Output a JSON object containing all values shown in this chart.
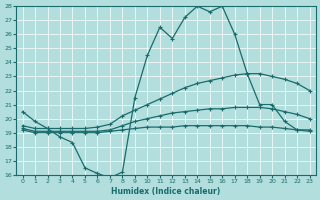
{
  "xlabel": "Humidex (Indice chaleur)",
  "background_color": "#b2dede",
  "line_color": "#1a6b6b",
  "grid_color": "#ffffff",
  "x_values": [
    0,
    1,
    2,
    3,
    4,
    5,
    6,
    7,
    8,
    9,
    10,
    11,
    12,
    13,
    14,
    15,
    16,
    17,
    18,
    19,
    20,
    21,
    22,
    23
  ],
  "line1": [
    20.5,
    19.8,
    19.3,
    18.7,
    18.3,
    16.5,
    16.1,
    15.8,
    16.2,
    21.5,
    24.5,
    26.5,
    25.7,
    27.2,
    28.0,
    27.6,
    28.0,
    26.0,
    23.2,
    21.0,
    21.0,
    19.8,
    19.2,
    19.2
  ],
  "line2": [
    19.5,
    19.3,
    19.3,
    19.3,
    19.3,
    19.3,
    19.4,
    19.6,
    20.2,
    20.6,
    21.0,
    21.4,
    21.8,
    22.2,
    22.5,
    22.7,
    22.9,
    23.1,
    23.2,
    23.2,
    23.0,
    22.8,
    22.5,
    22.0
  ],
  "line3": [
    19.3,
    19.1,
    19.1,
    19.1,
    19.1,
    19.1,
    19.1,
    19.2,
    19.5,
    19.8,
    20.0,
    20.2,
    20.4,
    20.5,
    20.6,
    20.7,
    20.7,
    20.8,
    20.8,
    20.8,
    20.7,
    20.5,
    20.3,
    20.0
  ],
  "line4": [
    19.2,
    19.0,
    19.0,
    19.0,
    19.0,
    19.0,
    19.0,
    19.1,
    19.2,
    19.3,
    19.4,
    19.4,
    19.4,
    19.5,
    19.5,
    19.5,
    19.5,
    19.5,
    19.5,
    19.4,
    19.4,
    19.3,
    19.2,
    19.1
  ],
  "ylim": [
    16,
    28
  ],
  "yticks": [
    16,
    17,
    18,
    19,
    20,
    21,
    22,
    23,
    24,
    25,
    26,
    27,
    28
  ],
  "xlim": [
    -0.5,
    23.5
  ],
  "lw": 0.9,
  "markersize": 3.5
}
